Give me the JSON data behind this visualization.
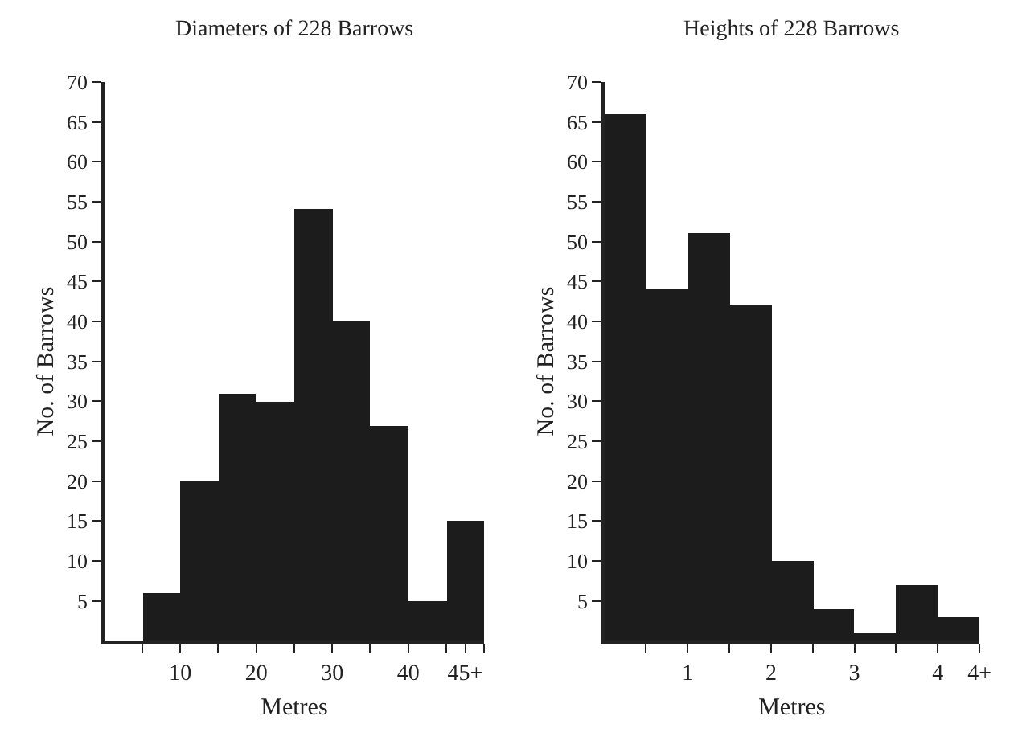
{
  "chart_data": [
    {
      "type": "histogram",
      "title": "Diameters of 228 Barrows",
      "xlabel": "Metres",
      "ylabel": "No. of Barrows",
      "bins": [
        5,
        10,
        15,
        20,
        25,
        30,
        35,
        40,
        45,
        50
      ],
      "values": [
        6,
        20,
        31,
        30,
        54,
        40,
        27,
        5,
        15
      ],
      "color": "#1c1c1c",
      "xlim": [
        0,
        50
      ],
      "xticks": [
        {
          "value": 5,
          "label": null
        },
        10,
        {
          "value": 15,
          "label": null
        },
        20,
        {
          "value": 25,
          "label": null
        },
        30,
        {
          "value": 35,
          "label": null
        },
        40,
        {
          "value": 45,
          "label": null
        },
        {
          "value": 47.5,
          "label": "45+"
        },
        {
          "value": 50,
          "label": null
        }
      ],
      "ylim": [
        0,
        70
      ],
      "yticks": [
        5,
        10,
        15,
        20,
        25,
        30,
        35,
        40,
        45,
        50,
        55,
        60,
        65,
        70
      ]
    },
    {
      "type": "histogram",
      "title": "Heights of 228 Barrows",
      "xlabel": "Metres",
      "ylabel": "No. of Barrows",
      "bins": [
        0,
        0.5,
        1,
        1.5,
        2,
        2.5,
        3,
        3.5,
        4,
        4.5
      ],
      "values": [
        66,
        44,
        51,
        42,
        10,
        4,
        1,
        7,
        3
      ],
      "color": "#1c1c1c",
      "xlim": [
        0,
        4.5
      ],
      "xticks": [
        {
          "value": 0.5,
          "label": null
        },
        1,
        {
          "value": 1.5,
          "label": null
        },
        2,
        {
          "value": 2.5,
          "label": null
        },
        3,
        {
          "value": 3.5,
          "label": null
        },
        4,
        {
          "value": 4.5,
          "label": "4+"
        }
      ],
      "ylim": [
        0,
        70
      ],
      "yticks": [
        5,
        10,
        15,
        20,
        25,
        30,
        35,
        40,
        45,
        50,
        55,
        60,
        65,
        70
      ]
    }
  ]
}
